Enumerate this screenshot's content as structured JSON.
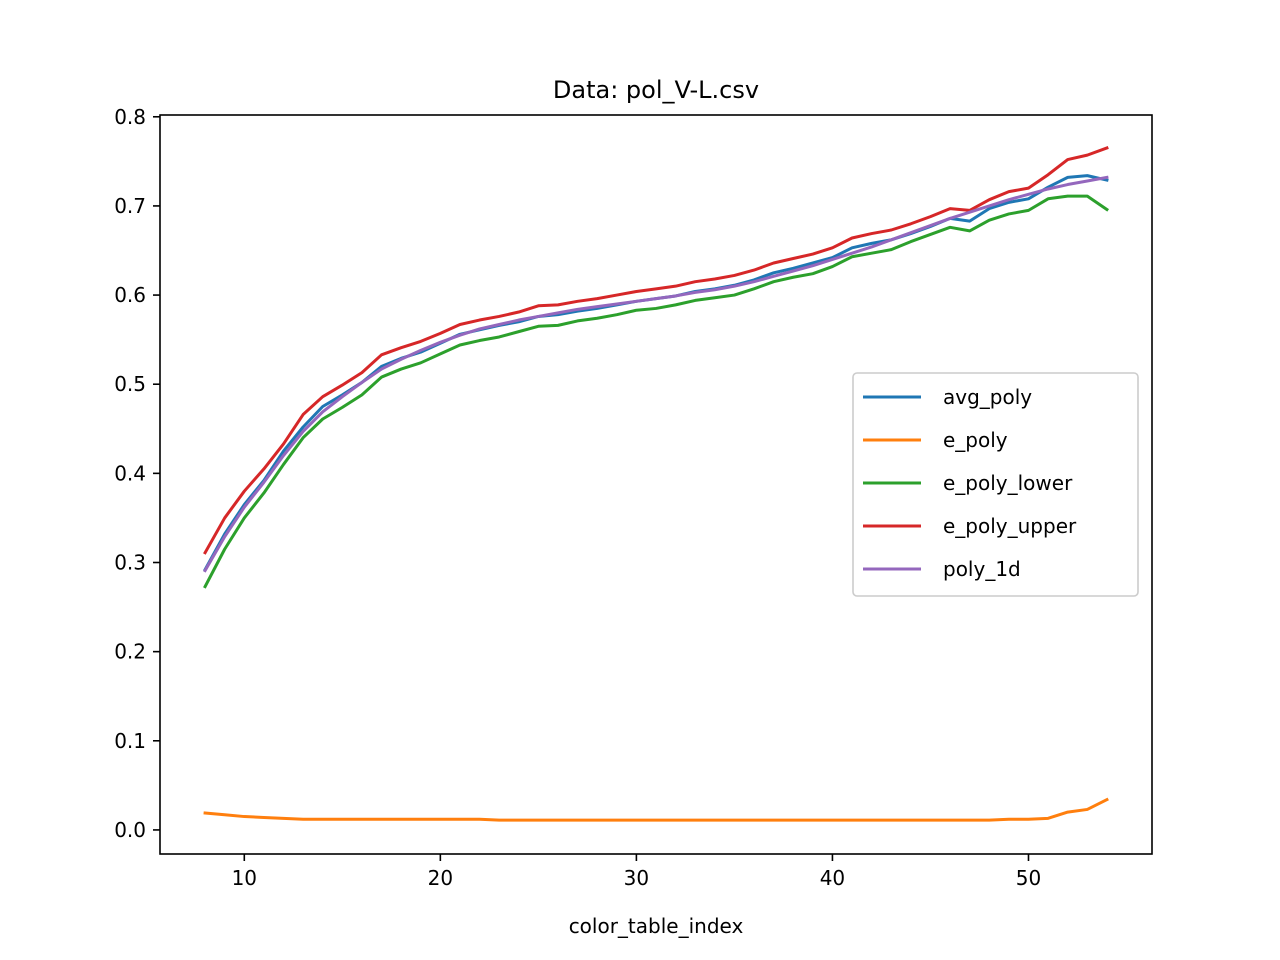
{
  "chart_data": {
    "type": "line",
    "title": "Data: pol_V-L.csv",
    "xlabel": "color_table_index",
    "ylabel": "",
    "xlim": [
      5.7,
      56.3
    ],
    "ylim": [
      -0.027,
      0.802
    ],
    "x_ticks": [
      10,
      20,
      30,
      40,
      50
    ],
    "y_ticks": [
      0.0,
      0.1,
      0.2,
      0.3,
      0.4,
      0.5,
      0.6,
      0.7,
      0.8
    ],
    "x_tick_labels": [
      "10",
      "20",
      "30",
      "40",
      "50"
    ],
    "y_tick_labels": [
      "0.0",
      "0.1",
      "0.2",
      "0.3",
      "0.4",
      "0.5",
      "0.6",
      "0.7",
      "0.8"
    ],
    "grid": false,
    "legend_position": "center-right",
    "x": [
      8,
      9,
      10,
      11,
      12,
      13,
      14,
      15,
      16,
      17,
      18,
      19,
      20,
      21,
      22,
      23,
      24,
      25,
      26,
      27,
      28,
      29,
      30,
      31,
      32,
      33,
      34,
      35,
      36,
      37,
      38,
      39,
      40,
      41,
      42,
      43,
      44,
      45,
      46,
      47,
      48,
      49,
      50,
      51,
      52,
      53,
      54
    ],
    "series": [
      {
        "name": "avg_poly",
        "color": "#1f77b4",
        "values": [
          0.292,
          0.332,
          0.365,
          0.392,
          0.425,
          0.452,
          0.475,
          0.488,
          0.502,
          0.52,
          0.529,
          0.536,
          0.546,
          0.556,
          0.561,
          0.566,
          0.57,
          0.576,
          0.578,
          0.582,
          0.585,
          0.589,
          0.593,
          0.596,
          0.599,
          0.604,
          0.607,
          0.611,
          0.617,
          0.625,
          0.63,
          0.636,
          0.642,
          0.653,
          0.658,
          0.662,
          0.669,
          0.677,
          0.686,
          0.683,
          0.697,
          0.704,
          0.708,
          0.721,
          0.732,
          0.734,
          0.729
        ]
      },
      {
        "name": "e_poly",
        "color": "#ff7f0e",
        "values": [
          0.019,
          0.017,
          0.015,
          0.014,
          0.013,
          0.012,
          0.012,
          0.012,
          0.012,
          0.012,
          0.012,
          0.012,
          0.012,
          0.012,
          0.012,
          0.011,
          0.011,
          0.011,
          0.011,
          0.011,
          0.011,
          0.011,
          0.011,
          0.011,
          0.011,
          0.011,
          0.011,
          0.011,
          0.011,
          0.011,
          0.011,
          0.011,
          0.011,
          0.011,
          0.011,
          0.011,
          0.011,
          0.011,
          0.011,
          0.011,
          0.011,
          0.012,
          0.012,
          0.013,
          0.02,
          0.023,
          0.034
        ]
      },
      {
        "name": "e_poly_lower",
        "color": "#2ca02c",
        "values": [
          0.273,
          0.315,
          0.35,
          0.378,
          0.41,
          0.44,
          0.461,
          0.474,
          0.488,
          0.508,
          0.517,
          0.524,
          0.534,
          0.544,
          0.549,
          0.553,
          0.559,
          0.565,
          0.566,
          0.571,
          0.574,
          0.578,
          0.583,
          0.585,
          0.589,
          0.594,
          0.597,
          0.6,
          0.607,
          0.615,
          0.62,
          0.624,
          0.632,
          0.643,
          0.647,
          0.651,
          0.66,
          0.668,
          0.676,
          0.672,
          0.684,
          0.691,
          0.695,
          0.708,
          0.711,
          0.711,
          0.696
        ]
      },
      {
        "name": "e_poly_upper",
        "color": "#d62728",
        "values": [
          0.311,
          0.35,
          0.38,
          0.405,
          0.433,
          0.466,
          0.486,
          0.499,
          0.513,
          0.533,
          0.541,
          0.548,
          0.557,
          0.567,
          0.572,
          0.576,
          0.581,
          0.588,
          0.589,
          0.593,
          0.596,
          0.6,
          0.604,
          0.607,
          0.61,
          0.615,
          0.618,
          0.622,
          0.628,
          0.636,
          0.641,
          0.646,
          0.653,
          0.664,
          0.669,
          0.673,
          0.68,
          0.688,
          0.697,
          0.695,
          0.707,
          0.716,
          0.72,
          0.735,
          0.752,
          0.757,
          0.765
        ]
      },
      {
        "name": "poly_1d",
        "color": "#9467bd",
        "values": [
          0.291,
          0.329,
          0.362,
          0.39,
          0.42,
          0.447,
          0.469,
          0.486,
          0.502,
          0.517,
          0.528,
          0.538,
          0.547,
          0.555,
          0.562,
          0.567,
          0.572,
          0.576,
          0.58,
          0.584,
          0.587,
          0.59,
          0.593,
          0.596,
          0.599,
          0.603,
          0.606,
          0.61,
          0.615,
          0.621,
          0.627,
          0.633,
          0.64,
          0.647,
          0.654,
          0.662,
          0.67,
          0.678,
          0.686,
          0.693,
          0.7,
          0.707,
          0.713,
          0.719,
          0.724,
          0.728,
          0.732
        ]
      }
    ]
  }
}
